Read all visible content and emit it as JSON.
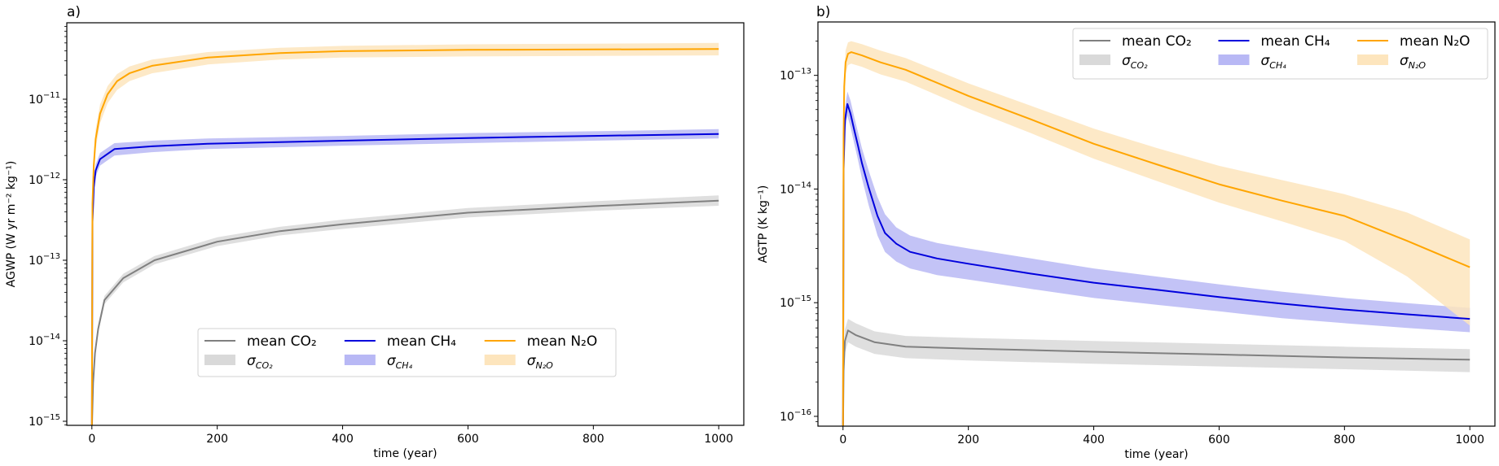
{
  "chart_data": [
    {
      "type": "line",
      "panel_label": "a)",
      "title": "",
      "xlabel": "time (year)",
      "ylabel": "AGWP (W yr m⁻² kg⁻¹)",
      "xlim": [
        -40,
        1040
      ],
      "ylim": [
        8.9e-16,
        8.9e-11
      ],
      "yscale": "log",
      "xticks": [
        0,
        200,
        400,
        600,
        800,
        1000
      ],
      "xtick_labels": [
        "0",
        "200",
        "400",
        "600",
        "800",
        "1000"
      ],
      "yticks": [
        1e-15,
        1e-14,
        1e-13,
        1e-12,
        1e-11
      ],
      "ytick_labels": [
        [
          "10",
          "−15"
        ],
        [
          "10",
          "−14"
        ],
        [
          "10",
          "−13"
        ],
        [
          "10",
          "−12"
        ],
        [
          "10",
          "−11"
        ]
      ],
      "grid": false,
      "legend_position": "lower-center",
      "series": [
        {
          "name": "CO2",
          "legend_mean": "mean CO₂",
          "legend_sigma": "σ CO₂",
          "color": "#808080",
          "band_color": "#d9d9d9",
          "x": [
            0,
            2,
            5,
            10,
            20,
            50,
            100,
            200,
            300,
            400,
            600,
            800,
            1000
          ],
          "mean": [
            8e-16,
            3e-15,
            7e-15,
            1.4e-14,
            3.2e-14,
            6e-14,
            1e-13,
            1.7e-13,
            2.3e-13,
            2.8e-13,
            3.9e-13,
            4.7e-13,
            5.5e-13
          ],
          "upper": [
            9e-16,
            3.4e-15,
            8e-15,
            1.6e-14,
            3.6e-14,
            6.8e-14,
            1.13e-13,
            1.93e-13,
            2.6e-13,
            3.2e-13,
            4.45e-13,
            5.4e-13,
            6.4e-13
          ],
          "lower": [
            7e-16,
            2.6e-15,
            6.2e-15,
            1.25e-14,
            2.85e-14,
            5.3e-14,
            8.9e-14,
            1.5e-13,
            2.03e-13,
            2.45e-13,
            3.4e-13,
            4.1e-13,
            4.75e-13
          ]
        },
        {
          "name": "CH4",
          "legend_mean": "mean CH₄",
          "legend_sigma": "σ CH₄",
          "color": "#0000dd",
          "band_color": "#b8b8f5",
          "x": [
            0,
            1,
            3,
            6,
            13,
            36,
            96,
            185,
            400,
            600,
            800,
            1000
          ],
          "mean": [
            8e-16,
            3e-13,
            8e-13,
            1.3e-12,
            1.8e-12,
            2.4e-12,
            2.6e-12,
            2.8e-12,
            3.05e-12,
            3.3e-12,
            3.5e-12,
            3.7e-12
          ],
          "upper": [
            9e-16,
            3.5e-13,
            9.4e-13,
            1.55e-12,
            2.15e-12,
            2.85e-12,
            3.05e-12,
            3.25e-12,
            3.5e-12,
            3.8e-12,
            4e-12,
            4.25e-12
          ],
          "lower": [
            7e-16,
            2.5e-13,
            6.8e-13,
            1.1e-12,
            1.5e-12,
            2e-12,
            2.2e-12,
            2.4e-12,
            2.65e-12,
            2.85e-12,
            3.05e-12,
            3.25e-12
          ]
        },
        {
          "name": "N2O",
          "legend_mean": "mean N₂O",
          "legend_sigma": "σ N₂O",
          "color": "#ffa500",
          "band_color": "#fde5bd",
          "x": [
            0,
            1,
            3,
            6,
            13,
            25,
            40,
            60,
            96,
            185,
            300,
            400,
            600,
            800,
            1000
          ],
          "mean": [
            8e-16,
            5e-13,
            1.5e-12,
            3.2e-12,
            6.6e-12,
            1.15e-11,
            1.67e-11,
            2.1e-11,
            2.6e-11,
            3.3e-11,
            3.75e-11,
            3.95e-11,
            4.1e-11,
            4.15e-11,
            4.2e-11
          ],
          "upper": [
            9e-16,
            6.5e-13,
            2e-12,
            4.2e-12,
            8.6e-12,
            1.45e-11,
            2.05e-11,
            2.55e-11,
            3.1e-11,
            3.85e-11,
            4.35e-11,
            4.6e-11,
            4.8e-11,
            4.9e-11,
            5e-11
          ],
          "lower": [
            7e-16,
            3.8e-13,
            1.15e-12,
            2.4e-12,
            5e-12,
            8.9e-12,
            1.3e-11,
            1.68e-11,
            2.1e-11,
            2.7e-11,
            3.1e-11,
            3.3e-11,
            3.4e-11,
            3.45e-11,
            3.5e-11
          ]
        }
      ]
    },
    {
      "type": "line",
      "panel_label": "b)",
      "title": "",
      "xlabel": "time (year)",
      "ylabel": "AGTP (K kg⁻¹)",
      "xlim": [
        -40,
        1040
      ],
      "ylim": [
        8.2e-17,
        2.95e-13
      ],
      "yscale": "log",
      "xticks": [
        0,
        200,
        400,
        600,
        800,
        1000
      ],
      "xtick_labels": [
        "0",
        "200",
        "400",
        "600",
        "800",
        "1000"
      ],
      "yticks": [
        1e-16,
        1e-15,
        1e-14,
        1e-13
      ],
      "ytick_labels": [
        [
          "10",
          "−16"
        ],
        [
          "10",
          "−15"
        ],
        [
          "10",
          "−14"
        ],
        [
          "10",
          "−13"
        ]
      ],
      "grid": false,
      "legend_position": "upper-right",
      "series": [
        {
          "name": "CO2",
          "legend_mean": "mean CO₂",
          "legend_sigma": "σ CO₂",
          "color": "#808080",
          "band_color": "#d9d9d9",
          "x": [
            0,
            1,
            3,
            8,
            20,
            50,
            100,
            200,
            400,
            600,
            800,
            1000
          ],
          "mean": [
            8e-17,
            2.5e-16,
            4.6e-16,
            5.7e-16,
            5.2e-16,
            4.5e-16,
            4.1e-16,
            3.95e-16,
            3.7e-16,
            3.5e-16,
            3.3e-16,
            3.15e-16
          ],
          "upper": [
            8.5e-17,
            3e-16,
            5.8e-16,
            7.2e-16,
            6.6e-16,
            5.6e-16,
            5.1e-16,
            4.9e-16,
            4.6e-16,
            4.35e-16,
            4.1e-16,
            3.9e-16
          ],
          "lower": [
            7.5e-17,
            2.1e-16,
            3.6e-16,
            4.5e-16,
            4.1e-16,
            3.55e-16,
            3.25e-16,
            3.1e-16,
            2.9e-16,
            2.75e-16,
            2.6e-16,
            2.45e-16
          ]
        },
        {
          "name": "CH4",
          "legend_mean": "mean CH₄",
          "legend_sigma": "σ CH₄",
          "color": "#0000dd",
          "band_color": "#b8b8f5",
          "x": [
            0,
            1,
            3,
            7,
            12,
            18,
            24,
            30,
            41,
            55,
            67,
            85,
            107,
            150,
            200,
            300,
            400,
            500,
            600,
            700,
            800,
            900,
            1000
          ],
          "mean": [
            8e-17,
            1.5e-14,
            4e-14,
            5.6e-14,
            4.6e-14,
            3.3e-14,
            2.4e-14,
            1.7e-14,
            1.03e-14,
            5.8e-15,
            4.1e-15,
            3.3e-15,
            2.8e-15,
            2.45e-15,
            2.2e-15,
            1.8e-15,
            1.5e-15,
            1.3e-15,
            1.12e-15,
            9.8e-16,
            8.7e-16,
            7.9e-16,
            7.2e-16
          ],
          "upper": [
            8.5e-17,
            1.9e-14,
            5.2e-14,
            7.2e-14,
            6e-14,
            4.3e-14,
            3.15e-14,
            2.3e-14,
            1.45e-14,
            8.5e-15,
            6e-15,
            4.6e-15,
            3.9e-15,
            3.35e-15,
            3e-15,
            2.45e-15,
            2e-15,
            1.7e-15,
            1.45e-15,
            1.25e-15,
            1.1e-15,
            9.9e-16,
            9e-16
          ],
          "lower": [
            7.5e-17,
            1.2e-14,
            3.1e-14,
            4.4e-14,
            3.5e-14,
            2.5e-14,
            1.8e-14,
            1.25e-14,
            7.2e-15,
            3.9e-15,
            2.8e-15,
            2.3e-15,
            2e-15,
            1.75e-15,
            1.6e-15,
            1.32e-15,
            1.1e-15,
            9.6e-16,
            8.4e-16,
            7.3e-16,
            6.6e-16,
            6e-16,
            5.5e-16
          ]
        },
        {
          "name": "N2O",
          "legend_mean": "mean N₂O",
          "legend_sigma": "σ N₂O",
          "color": "#ffa500",
          "band_color": "#fde5bd",
          "x": [
            0,
            1,
            2,
            4,
            8,
            13,
            30,
            60,
            100,
            200,
            300,
            400,
            500,
            600,
            700,
            800,
            900,
            1000
          ],
          "mean": [
            8e-17,
            3e-14,
            8e-14,
            1.3e-13,
            1.55e-13,
            1.6e-13,
            1.5e-13,
            1.3e-13,
            1.12e-13,
            6.6e-14,
            4.1e-14,
            2.5e-14,
            1.65e-14,
            1.1e-14,
            7.9e-15,
            5.8e-15,
            3.5e-15,
            2.05e-15
          ],
          "upper": [
            8.5e-17,
            3.8e-14,
            1e-13,
            1.65e-13,
            1.95e-13,
            2e-13,
            1.88e-13,
            1.65e-13,
            1.42e-13,
            8.5e-14,
            5.4e-14,
            3.4e-14,
            2.3e-14,
            1.6e-14,
            1.2e-14,
            9e-15,
            6.2e-15,
            3.6e-15
          ],
          "lower": [
            7.5e-17,
            2.4e-14,
            6.4e-14,
            1.03e-13,
            1.23e-13,
            1.27e-13,
            1.19e-13,
            1.02e-13,
            8.8e-14,
            5.1e-14,
            3.1e-14,
            1.85e-14,
            1.18e-14,
            7.6e-15,
            5.2e-15,
            3.5e-15,
            1.7e-15,
            6.3e-16
          ]
        }
      ]
    }
  ]
}
